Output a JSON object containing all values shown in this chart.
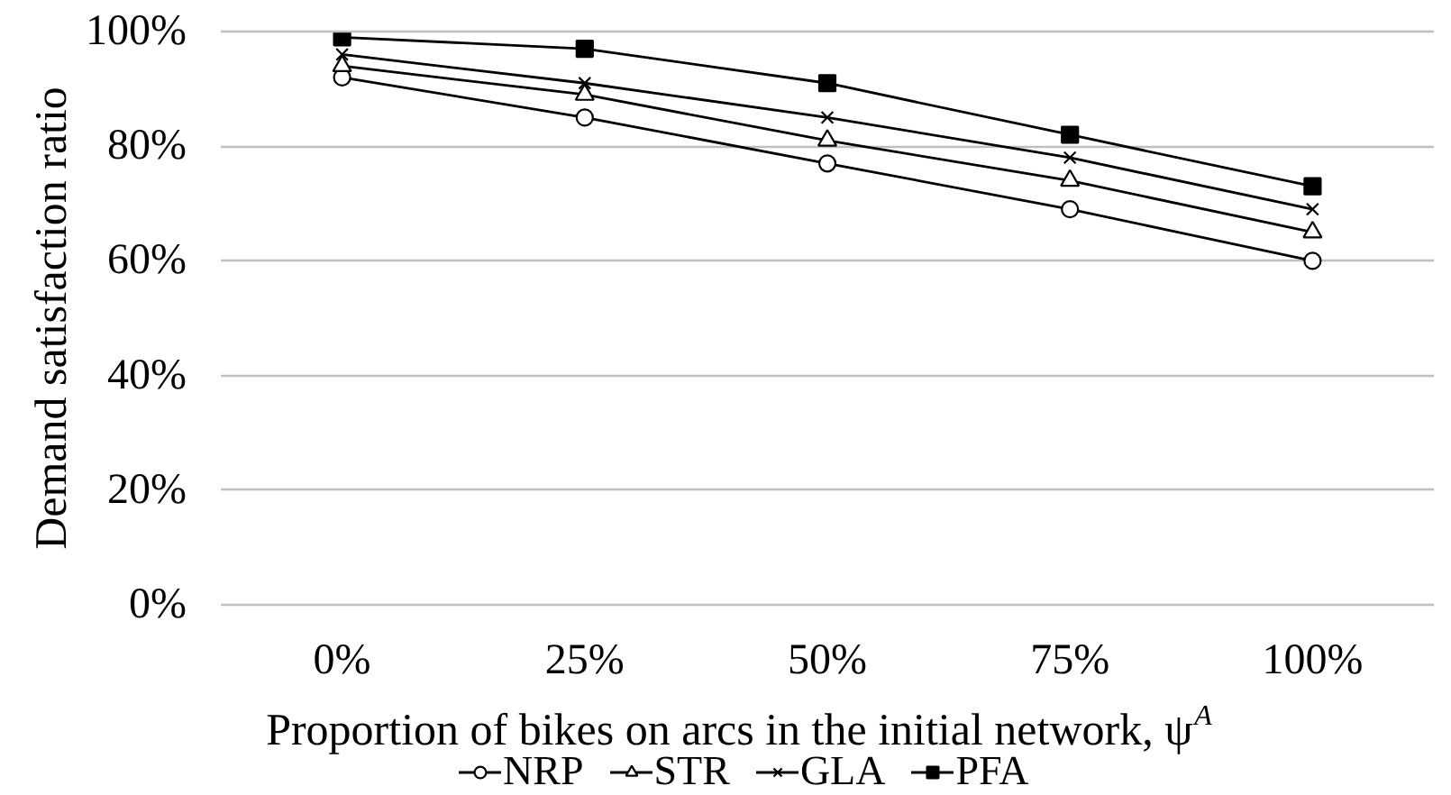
{
  "chart_data": {
    "type": "line",
    "xlabel": "Proportion of bikes on arcs in the initial network, ψ$^{A}$",
    "ylabel": "Demand satisfaction ratio",
    "categories": [
      "0%",
      "25%",
      "50%",
      "75%",
      "100%"
    ],
    "ylim": [
      0,
      100
    ],
    "yticks": [
      {
        "value": 0,
        "label": "0%"
      },
      {
        "value": 20,
        "label": "20%"
      },
      {
        "value": 40,
        "label": "40%"
      },
      {
        "value": 60,
        "label": "60%"
      },
      {
        "value": 80,
        "label": "80%"
      },
      {
        "value": 100,
        "label": "100%"
      }
    ],
    "grid": "y",
    "legend": "bottom",
    "line_style": "solid",
    "series": [
      {
        "name": "NRP",
        "color": "#000000",
        "marker": "circle",
        "values": [
          92,
          85,
          77,
          69,
          60
        ]
      },
      {
        "name": "STR",
        "color": "#000000",
        "marker": "triangle",
        "values": [
          94,
          89,
          81,
          74,
          65
        ]
      },
      {
        "name": "GLA",
        "color": "#000000",
        "marker": "cross",
        "values": [
          96,
          91,
          85,
          78,
          69
        ]
      },
      {
        "name": "PFA",
        "color": "#000000",
        "marker": "square",
        "values": [
          99,
          97,
          91,
          82,
          73
        ]
      }
    ]
  }
}
